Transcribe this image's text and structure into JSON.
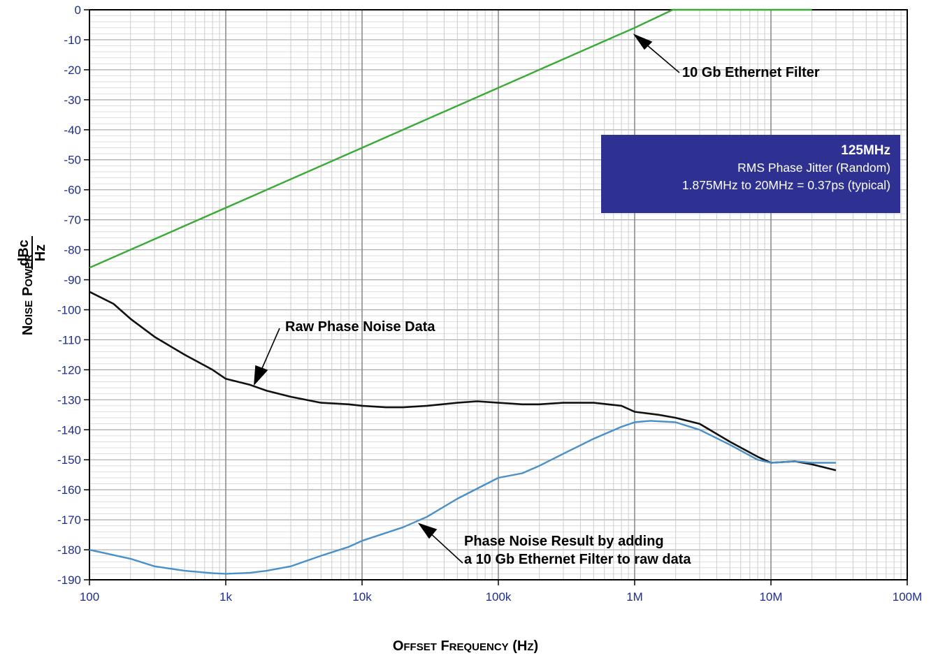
{
  "chart_data": {
    "type": "line",
    "xscale": "log",
    "xlim": [
      100,
      100000000
    ],
    "ylim": [
      -190,
      0
    ],
    "x_tick_labels": [
      "100",
      "1k",
      "10k",
      "100k",
      "1M",
      "10M",
      "100M"
    ],
    "y_tick_labels": [
      "0",
      "-10",
      "-20",
      "-30",
      "-40",
      "-50",
      "-60",
      "-70",
      "-80",
      "-90",
      "-100",
      "-110",
      "-120",
      "-130",
      "-140",
      "-150",
      "-160",
      "-170",
      "-180",
      "-190"
    ],
    "ylabel": {
      "main_initial_1": "N",
      "main_rest_1": "OISE",
      "main_initial_2": "P",
      "main_rest_2": "OWER",
      "unit_top": "dBc",
      "unit_bottom": "Hz"
    },
    "xlabel": {
      "i1": "O",
      "r1": "FFSET",
      "i2": "F",
      "r2": "REQUENCY",
      "p1": "(H",
      "r3": "Z",
      "p2": ")"
    },
    "grid": true,
    "series": [
      {
        "color": "#3aa935",
        "x": [
          100,
          1000,
          10000,
          100000,
          1000000,
          1900000,
          20000000
        ],
        "y": [
          -86,
          -66,
          -46,
          -26,
          -6,
          0,
          0
        ]
      },
      {
        "color": "#111111",
        "x": [
          100,
          150,
          200,
          300,
          500,
          800,
          1000,
          1500,
          2000,
          3000,
          5000,
          8000,
          10000,
          15000,
          20000,
          30000,
          50000,
          70000,
          100000,
          150000,
          200000,
          300000,
          500000,
          800000,
          1000000,
          1500000,
          2000000,
          3000000,
          5000000,
          8000000,
          10000000,
          15000000,
          20000000,
          30000000
        ],
        "y": [
          -94,
          -98,
          -103,
          -109,
          -115,
          -120,
          -123,
          -125,
          -127,
          -129,
          -131,
          -131.5,
          -132,
          -132.5,
          -132.5,
          -132,
          -131,
          -130.5,
          -131,
          -131.5,
          -131.5,
          -131,
          -131,
          -132,
          -134,
          -135,
          -136,
          -138,
          -144,
          -149,
          -151,
          -150.5,
          -151.5,
          -153.5
        ]
      },
      {
        "color": "#4a90c8",
        "x": [
          100,
          200,
          300,
          500,
          800,
          1000,
          1500,
          2000,
          3000,
          5000,
          8000,
          10000,
          20000,
          30000,
          50000,
          100000,
          150000,
          200000,
          300000,
          500000,
          800000,
          1000000,
          1300000,
          2000000,
          3000000,
          5000000,
          8000000,
          10000000,
          15000000,
          20000000,
          30000000
        ],
        "y": [
          -180,
          -183,
          -185.5,
          -187,
          -187.8,
          -188,
          -187.7,
          -187,
          -185.5,
          -182,
          -179,
          -177,
          -172.5,
          -169,
          -163,
          -156,
          -154.5,
          -152,
          -148,
          -143,
          -139,
          -137.5,
          -137,
          -137.5,
          -140,
          -145,
          -150,
          -151,
          -150.5,
          -151,
          -151
        ]
      }
    ],
    "annotations": {
      "filter": "10 Gb Ethernet Filter",
      "raw": "Raw Phase Noise Data",
      "result_line1": "Phase Noise Result by adding",
      "result_line2": "a 10 Gb Ethernet Filter to raw data"
    }
  },
  "info_box": {
    "title": "125MHz",
    "line1": "RMS Phase Jitter (Random)",
    "line2": "1.875MHz to 20MHz = 0.37ps (typical)"
  }
}
